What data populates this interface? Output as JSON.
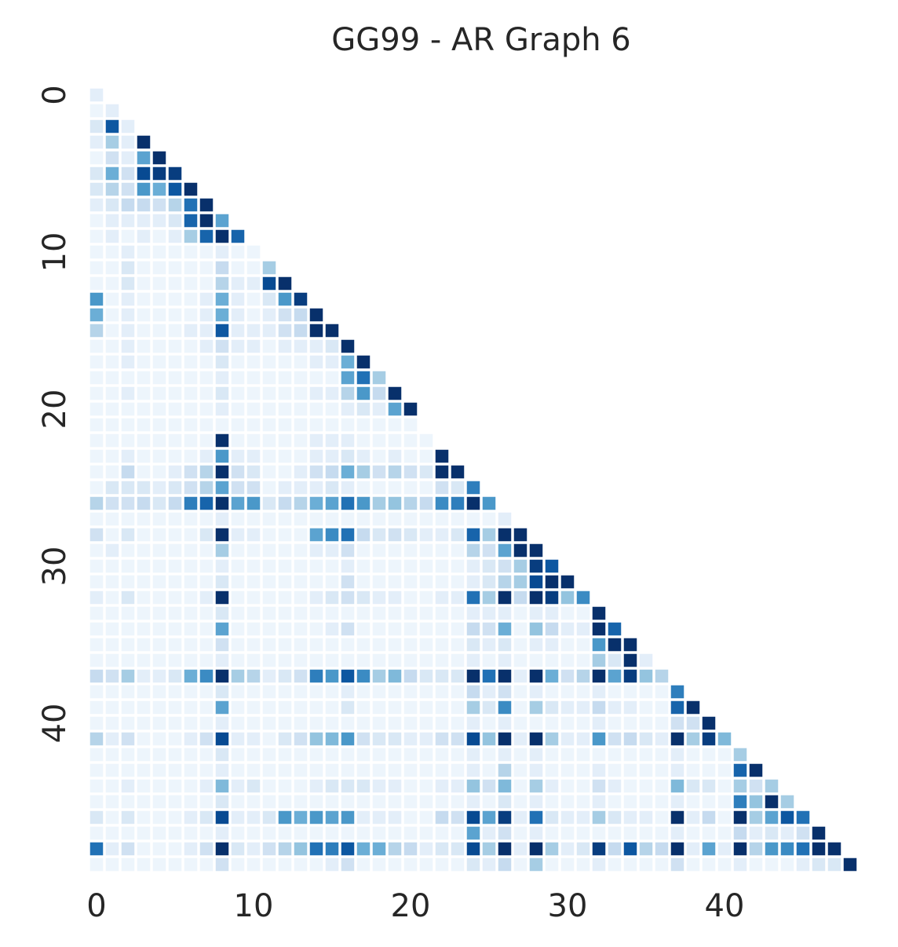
{
  "chart_data": {
    "type": "heatmap",
    "title": "GG99 - AR Graph 6",
    "xlabel": "",
    "ylabel": "",
    "size": 49,
    "triangle": "lower",
    "colormap": "Blues",
    "value_range": [
      0,
      1
    ],
    "grid": false,
    "colorbar": false,
    "x_ticks": [
      0,
      10,
      20,
      30,
      40
    ],
    "y_ticks": [
      0,
      10,
      20,
      30,
      40
    ],
    "x_tick_labels": [
      "0",
      "10",
      "20",
      "30",
      "40"
    ],
    "y_tick_labels": [
      "0",
      "10",
      "20",
      "30",
      "40"
    ],
    "rows": [
      [
        0.1
      ],
      [
        0.05,
        0.1
      ],
      [
        0.15,
        0.85,
        0.1
      ],
      [
        0.1,
        0.35,
        0.1,
        1.0
      ],
      [
        0.05,
        0.2,
        0.1,
        0.55,
        1.0
      ],
      [
        0.15,
        0.5,
        0.2,
        0.9,
        0.95,
        0.95
      ],
      [
        0.15,
        0.3,
        0.2,
        0.6,
        0.5,
        0.85,
        1.0
      ],
      [
        0.1,
        0.15,
        0.25,
        0.25,
        0.2,
        0.3,
        0.75,
        1.0
      ],
      [
        0.05,
        0.1,
        0.1,
        0.1,
        0.1,
        0.15,
        0.8,
        1.0,
        0.55
      ],
      [
        0.05,
        0.1,
        0.05,
        0.1,
        0.05,
        0.1,
        0.35,
        0.8,
        1.0,
        0.8
      ],
      [
        0.05,
        0.05,
        0.1,
        0.05,
        0.05,
        0.05,
        0.05,
        0.05,
        0.1,
        0.05,
        0.05
      ],
      [
        0.05,
        0.05,
        0.15,
        0.05,
        0.05,
        0.05,
        0.05,
        0.05,
        0.25,
        0.05,
        0.05,
        0.35
      ],
      [
        0.05,
        0.05,
        0.15,
        0.05,
        0.05,
        0.05,
        0.05,
        0.05,
        0.3,
        0.1,
        0.1,
        0.9,
        1.0
      ],
      [
        0.6,
        0.05,
        0.1,
        0.05,
        0.05,
        0.05,
        0.05,
        0.1,
        0.5,
        0.1,
        0.05,
        0.15,
        0.6,
        0.95
      ],
      [
        0.5,
        0.05,
        0.1,
        0.05,
        0.05,
        0.05,
        0.05,
        0.1,
        0.5,
        0.1,
        0.05,
        0.1,
        0.2,
        0.25,
        1.0
      ],
      [
        0.3,
        0.05,
        0.1,
        0.05,
        0.05,
        0.05,
        0.1,
        0.1,
        0.85,
        0.1,
        0.1,
        0.1,
        0.2,
        0.25,
        1.0,
        1.0
      ],
      [
        0.05,
        0.05,
        0.1,
        0.05,
        0.05,
        0.05,
        0.05,
        0.1,
        0.2,
        0.1,
        0.1,
        0.05,
        0.1,
        0.1,
        0.1,
        0.15,
        1.0
      ],
      [
        0.05,
        0.05,
        0.1,
        0.05,
        0.05,
        0.05,
        0.05,
        0.05,
        0.15,
        0.05,
        0.05,
        0.05,
        0.05,
        0.05,
        0.1,
        0.1,
        0.5,
        1.0
      ],
      [
        0.05,
        0.05,
        0.05,
        0.05,
        0.05,
        0.05,
        0.05,
        0.05,
        0.1,
        0.05,
        0.05,
        0.05,
        0.05,
        0.05,
        0.05,
        0.05,
        0.55,
        0.75,
        0.35
      ],
      [
        0.05,
        0.05,
        0.1,
        0.05,
        0.05,
        0.05,
        0.05,
        0.05,
        0.15,
        0.05,
        0.05,
        0.05,
        0.05,
        0.05,
        0.1,
        0.1,
        0.3,
        0.6,
        0.25,
        1.0
      ],
      [
        0.05,
        0.05,
        0.05,
        0.05,
        0.05,
        0.05,
        0.05,
        0.05,
        0.1,
        0.05,
        0.05,
        0.05,
        0.05,
        0.05,
        0.05,
        0.05,
        0.1,
        0.15,
        0.1,
        0.55,
        1.0
      ],
      [
        0.05,
        0.05,
        0.05,
        0.05,
        0.05,
        0.05,
        0.05,
        0.05,
        0.05,
        0.05,
        0.05,
        0.05,
        0.05,
        0.05,
        0.05,
        0.05,
        0.05,
        0.05,
        0.05,
        0.05,
        0.05
      ],
      [
        0.05,
        0.05,
        0.05,
        0.05,
        0.05,
        0.05,
        0.05,
        0.05,
        1.0,
        0.05,
        0.05,
        0.05,
        0.05,
        0.05,
        0.1,
        0.1,
        0.1,
        0.05,
        0.05,
        0.05,
        0.05,
        0.05
      ],
      [
        0.05,
        0.05,
        0.1,
        0.05,
        0.05,
        0.05,
        0.05,
        0.1,
        0.6,
        0.1,
        0.1,
        0.05,
        0.05,
        0.05,
        0.1,
        0.1,
        0.15,
        0.1,
        0.05,
        0.1,
        0.05,
        0.05,
        1.0
      ],
      [
        0.05,
        0.05,
        0.25,
        0.05,
        0.05,
        0.1,
        0.2,
        0.3,
        1.0,
        0.2,
        0.15,
        0.05,
        0.05,
        0.1,
        0.2,
        0.25,
        0.5,
        0.35,
        0.2,
        0.3,
        0.2,
        0.15,
        1.0,
        1.0
      ],
      [
        0.05,
        0.15,
        0.15,
        0.15,
        0.1,
        0.15,
        0.2,
        0.3,
        0.55,
        0.2,
        0.2,
        0.05,
        0.1,
        0.1,
        0.1,
        0.15,
        0.1,
        0.05,
        0.05,
        0.05,
        0.05,
        0.05,
        0.2,
        0.15,
        0.7
      ],
      [
        0.3,
        0.2,
        0.2,
        0.25,
        0.15,
        0.25,
        0.7,
        0.8,
        1.0,
        0.55,
        0.6,
        0.15,
        0.25,
        0.3,
        0.5,
        0.55,
        0.75,
        0.6,
        0.35,
        0.4,
        0.3,
        0.25,
        0.65,
        0.7,
        1.0,
        0.6
      ],
      [
        0.05,
        0.05,
        0.05,
        0.05,
        0.05,
        0.05,
        0.05,
        0.05,
        0.1,
        0.05,
        0.05,
        0.05,
        0.05,
        0.05,
        0.05,
        0.05,
        0.05,
        0.05,
        0.05,
        0.05,
        0.05,
        0.05,
        0.05,
        0.05,
        0.05,
        0.05,
        0.1
      ],
      [
        0.2,
        0.05,
        0.15,
        0.05,
        0.05,
        0.05,
        0.05,
        0.15,
        1.0,
        0.1,
        0.1,
        0.05,
        0.05,
        0.05,
        0.55,
        0.65,
        0.75,
        0.25,
        0.15,
        0.2,
        0.15,
        0.1,
        0.1,
        0.15,
        0.8,
        0.35,
        1.0,
        1.0
      ],
      [
        0.05,
        0.1,
        0.05,
        0.05,
        0.05,
        0.05,
        0.05,
        0.05,
        0.35,
        0.05,
        0.05,
        0.05,
        0.05,
        0.05,
        0.1,
        0.1,
        0.2,
        0.05,
        0.05,
        0.05,
        0.05,
        0.05,
        0.05,
        0.05,
        0.3,
        0.2,
        0.55,
        1.0,
        1.0
      ],
      [
        0.05,
        0.05,
        0.05,
        0.05,
        0.05,
        0.05,
        0.05,
        0.05,
        0.1,
        0.05,
        0.05,
        0.05,
        0.05,
        0.05,
        0.05,
        0.05,
        0.1,
        0.05,
        0.05,
        0.05,
        0.05,
        0.05,
        0.05,
        0.05,
        0.1,
        0.15,
        0.2,
        0.35,
        0.95,
        0.85
      ],
      [
        0.05,
        0.05,
        0.05,
        0.05,
        0.05,
        0.05,
        0.05,
        0.05,
        0.15,
        0.05,
        0.05,
        0.05,
        0.05,
        0.05,
        0.05,
        0.05,
        0.2,
        0.05,
        0.05,
        0.05,
        0.05,
        0.05,
        0.05,
        0.05,
        0.1,
        0.15,
        0.3,
        0.35,
        0.9,
        1.0,
        1.0
      ],
      [
        0.1,
        0.05,
        0.15,
        0.05,
        0.05,
        0.05,
        0.05,
        0.1,
        1.0,
        0.05,
        0.05,
        0.05,
        0.05,
        0.05,
        0.1,
        0.15,
        0.2,
        0.15,
        0.1,
        0.1,
        0.05,
        0.05,
        0.1,
        0.1,
        0.75,
        0.35,
        1.0,
        0.25,
        1.0,
        0.95,
        0.4,
        0.65
      ],
      [
        0.05,
        0.05,
        0.05,
        0.05,
        0.05,
        0.05,
        0.05,
        0.05,
        0.15,
        0.05,
        0.05,
        0.05,
        0.05,
        0.05,
        0.05,
        0.05,
        0.05,
        0.05,
        0.05,
        0.05,
        0.05,
        0.05,
        0.05,
        0.05,
        0.1,
        0.1,
        0.1,
        0.05,
        0.1,
        0.1,
        0.05,
        0.05,
        1.0
      ],
      [
        0.05,
        0.05,
        0.05,
        0.05,
        0.05,
        0.05,
        0.05,
        0.05,
        0.55,
        0.05,
        0.05,
        0.05,
        0.05,
        0.05,
        0.05,
        0.1,
        0.2,
        0.05,
        0.05,
        0.05,
        0.05,
        0.05,
        0.05,
        0.05,
        0.25,
        0.2,
        0.5,
        0.05,
        0.4,
        0.25,
        0.1,
        0.1,
        1.0,
        0.8
      ],
      [
        0.05,
        0.05,
        0.05,
        0.05,
        0.05,
        0.05,
        0.05,
        0.05,
        0.2,
        0.05,
        0.05,
        0.05,
        0.05,
        0.05,
        0.05,
        0.05,
        0.05,
        0.05,
        0.05,
        0.05,
        0.05,
        0.05,
        0.05,
        0.05,
        0.15,
        0.1,
        0.15,
        0.05,
        0.1,
        0.1,
        0.05,
        0.05,
        0.6,
        1.0,
        1.0
      ],
      [
        0.05,
        0.05,
        0.05,
        0.05,
        0.05,
        0.05,
        0.05,
        0.05,
        0.1,
        0.05,
        0.05,
        0.05,
        0.05,
        0.05,
        0.05,
        0.05,
        0.05,
        0.05,
        0.05,
        0.05,
        0.05,
        0.05,
        0.05,
        0.05,
        0.1,
        0.05,
        0.1,
        0.05,
        0.05,
        0.05,
        0.05,
        0.05,
        0.35,
        0.15,
        1.0,
        0.1
      ],
      [
        0.25,
        0.2,
        0.35,
        0.1,
        0.1,
        0.15,
        0.5,
        0.65,
        1.0,
        0.35,
        0.3,
        0.1,
        0.15,
        0.2,
        0.7,
        0.6,
        0.85,
        0.65,
        0.35,
        0.45,
        0.25,
        0.15,
        0.15,
        0.15,
        1.0,
        0.75,
        1.0,
        0.1,
        1.0,
        0.5,
        0.2,
        0.3,
        1.0,
        0.55,
        0.95,
        0.4,
        0.3
      ],
      [
        0.05,
        0.05,
        0.05,
        0.05,
        0.05,
        0.05,
        0.05,
        0.05,
        0.15,
        0.05,
        0.05,
        0.05,
        0.05,
        0.05,
        0.05,
        0.05,
        0.1,
        0.05,
        0.05,
        0.05,
        0.05,
        0.05,
        0.05,
        0.05,
        0.25,
        0.1,
        0.2,
        0.05,
        0.1,
        0.05,
        0.05,
        0.05,
        0.1,
        0.05,
        0.05,
        0.05,
        0.05,
        0.7
      ],
      [
        0.05,
        0.05,
        0.05,
        0.05,
        0.05,
        0.05,
        0.05,
        0.05,
        0.55,
        0.05,
        0.05,
        0.05,
        0.05,
        0.05,
        0.05,
        0.05,
        0.15,
        0.05,
        0.05,
        0.05,
        0.05,
        0.05,
        0.05,
        0.05,
        0.35,
        0.15,
        0.65,
        0.05,
        0.35,
        0.15,
        0.1,
        0.1,
        0.25,
        0.1,
        0.1,
        0.05,
        0.05,
        0.8,
        1.0
      ],
      [
        0.05,
        0.05,
        0.05,
        0.05,
        0.05,
        0.05,
        0.05,
        0.05,
        0.1,
        0.05,
        0.05,
        0.05,
        0.05,
        0.05,
        0.05,
        0.05,
        0.05,
        0.05,
        0.05,
        0.05,
        0.05,
        0.05,
        0.05,
        0.05,
        0.1,
        0.05,
        0.1,
        0.05,
        0.05,
        0.05,
        0.05,
        0.05,
        0.1,
        0.05,
        0.05,
        0.05,
        0.05,
        0.2,
        0.2,
        1.0
      ],
      [
        0.3,
        0.1,
        0.2,
        0.05,
        0.05,
        0.05,
        0.1,
        0.2,
        0.9,
        0.1,
        0.1,
        0.05,
        0.15,
        0.2,
        0.4,
        0.45,
        0.6,
        0.2,
        0.15,
        0.15,
        0.1,
        0.1,
        0.2,
        0.2,
        0.9,
        0.4,
        1.0,
        0.1,
        1.0,
        0.35,
        0.1,
        0.1,
        0.6,
        0.2,
        0.25,
        0.15,
        0.1,
        1.0,
        0.35,
        0.95,
        0.45
      ],
      [
        0.05,
        0.05,
        0.05,
        0.05,
        0.05,
        0.05,
        0.05,
        0.05,
        0.15,
        0.05,
        0.05,
        0.05,
        0.05,
        0.05,
        0.05,
        0.05,
        0.05,
        0.05,
        0.05,
        0.05,
        0.05,
        0.05,
        0.05,
        0.05,
        0.1,
        0.05,
        0.1,
        0.05,
        0.1,
        0.05,
        0.05,
        0.05,
        0.05,
        0.05,
        0.05,
        0.05,
        0.05,
        0.1,
        0.05,
        0.05,
        0.05,
        0.35
      ],
      [
        0.05,
        0.05,
        0.05,
        0.05,
        0.05,
        0.05,
        0.05,
        0.05,
        0.1,
        0.05,
        0.05,
        0.05,
        0.05,
        0.05,
        0.05,
        0.05,
        0.05,
        0.05,
        0.05,
        0.05,
        0.05,
        0.05,
        0.05,
        0.05,
        0.1,
        0.05,
        0.3,
        0.05,
        0.1,
        0.05,
        0.05,
        0.05,
        0.1,
        0.05,
        0.05,
        0.05,
        0.05,
        0.1,
        0.05,
        0.05,
        0.05,
        0.8,
        1.0
      ],
      [
        0.05,
        0.05,
        0.1,
        0.05,
        0.05,
        0.05,
        0.05,
        0.1,
        0.45,
        0.1,
        0.15,
        0.05,
        0.05,
        0.05,
        0.1,
        0.15,
        0.15,
        0.15,
        0.1,
        0.1,
        0.05,
        0.05,
        0.1,
        0.1,
        0.4,
        0.2,
        0.45,
        0.05,
        0.35,
        0.1,
        0.05,
        0.05,
        0.2,
        0.1,
        0.05,
        0.05,
        0.05,
        0.45,
        0.15,
        0.15,
        0.05,
        0.35,
        0.2,
        0.35
      ],
      [
        0.05,
        0.05,
        0.05,
        0.05,
        0.05,
        0.05,
        0.05,
        0.05,
        0.15,
        0.05,
        0.05,
        0.05,
        0.05,
        0.05,
        0.05,
        0.05,
        0.05,
        0.05,
        0.05,
        0.05,
        0.05,
        0.05,
        0.05,
        0.05,
        0.1,
        0.05,
        0.15,
        0.05,
        0.1,
        0.05,
        0.05,
        0.05,
        0.1,
        0.05,
        0.05,
        0.05,
        0.05,
        0.1,
        0.05,
        0.05,
        0.05,
        0.7,
        0.4,
        1.0,
        0.35
      ],
      [
        0.15,
        0.05,
        0.15,
        0.05,
        0.05,
        0.05,
        0.1,
        0.15,
        0.9,
        0.1,
        0.1,
        0.15,
        0.6,
        0.5,
        0.6,
        0.55,
        0.6,
        0.1,
        0.1,
        0.1,
        0.05,
        0.05,
        0.25,
        0.2,
        0.9,
        0.55,
        0.95,
        0.1,
        0.75,
        0.15,
        0.1,
        0.1,
        0.35,
        0.15,
        0.1,
        0.1,
        0.05,
        1.0,
        0.1,
        0.25,
        0.05,
        1.0,
        0.35,
        0.55,
        0.85,
        0.75
      ],
      [
        0.05,
        0.05,
        0.05,
        0.05,
        0.05,
        0.05,
        0.05,
        0.05,
        0.1,
        0.05,
        0.05,
        0.05,
        0.05,
        0.05,
        0.05,
        0.05,
        0.05,
        0.05,
        0.05,
        0.05,
        0.05,
        0.05,
        0.05,
        0.05,
        0.55,
        0.1,
        0.2,
        0.05,
        0.1,
        0.05,
        0.05,
        0.05,
        0.05,
        0.05,
        0.05,
        0.05,
        0.05,
        0.1,
        0.05,
        0.05,
        0.05,
        0.25,
        0.1,
        0.15,
        0.1,
        0.2,
        1.0
      ],
      [
        0.75,
        0.1,
        0.2,
        0.05,
        0.05,
        0.05,
        0.1,
        0.2,
        1.0,
        0.15,
        0.1,
        0.2,
        0.3,
        0.4,
        0.75,
        0.7,
        0.85,
        0.5,
        0.5,
        0.3,
        0.25,
        0.1,
        0.15,
        0.15,
        0.9,
        0.35,
        1.0,
        0.1,
        1.0,
        0.35,
        0.1,
        0.15,
        0.95,
        0.25,
        0.85,
        0.3,
        0.25,
        1.0,
        0.1,
        0.55,
        0.1,
        1.0,
        0.3,
        0.6,
        0.65,
        0.75,
        1.0,
        1.0
      ],
      [
        0.05,
        0.05,
        0.05,
        0.05,
        0.05,
        0.05,
        0.05,
        0.05,
        0.2,
        0.05,
        0.05,
        0.05,
        0.05,
        0.05,
        0.05,
        0.1,
        0.2,
        0.05,
        0.05,
        0.05,
        0.05,
        0.05,
        0.05,
        0.05,
        0.15,
        0.1,
        0.25,
        0.05,
        0.35,
        0.05,
        0.05,
        0.05,
        0.1,
        0.05,
        0.05,
        0.05,
        0.05,
        0.2,
        0.05,
        0.05,
        0.05,
        0.1,
        0.05,
        0.05,
        0.05,
        0.1,
        0.15,
        0.15,
        1.0
      ]
    ]
  }
}
